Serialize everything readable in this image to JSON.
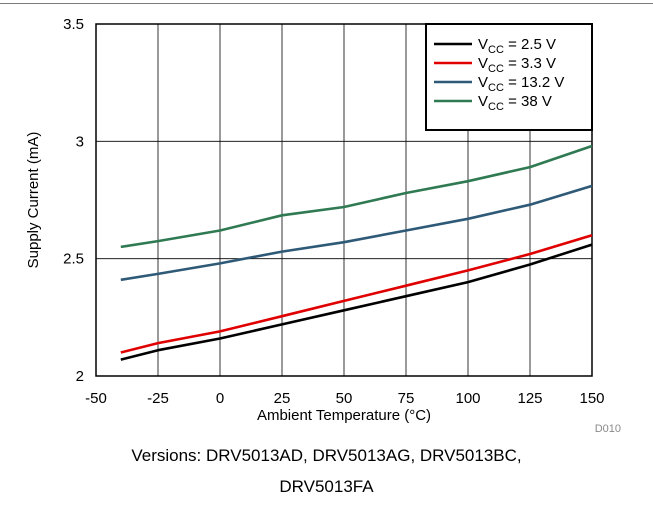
{
  "chart_data": {
    "type": "line",
    "title": "",
    "xlabel": "Ambient Temperature (°C)",
    "ylabel": "Supply Current (mA)",
    "xlim": [
      -50,
      150
    ],
    "ylim": [
      2,
      3.5
    ],
    "xticks": [
      "-50",
      "-25",
      "0",
      "25",
      "50",
      "75",
      "100",
      "125",
      "150"
    ],
    "yticks": [
      "2",
      "2.5",
      "3",
      "3.5"
    ],
    "grid": true,
    "legend_position": "top-right",
    "x": [
      -40,
      -25,
      0,
      25,
      50,
      75,
      100,
      125,
      150
    ],
    "series": [
      {
        "name_main": "V",
        "name_sub": "CC",
        "name_rest": " = 2.5 V",
        "color": "#000000",
        "values": [
          2.07,
          2.11,
          2.16,
          2.22,
          2.28,
          2.34,
          2.4,
          2.475,
          2.56
        ]
      },
      {
        "name_main": "V",
        "name_sub": "CC",
        "name_rest": " = 3.3 V",
        "color": "#e00000",
        "values": [
          2.1,
          2.14,
          2.19,
          2.255,
          2.32,
          2.385,
          2.45,
          2.52,
          2.6
        ]
      },
      {
        "name_main": "V",
        "name_sub": "CC",
        "name_rest": " = 13.2 V",
        "color": "#2e5a78",
        "values": [
          2.41,
          2.435,
          2.48,
          2.53,
          2.57,
          2.62,
          2.67,
          2.73,
          2.81
        ]
      },
      {
        "name_main": "V",
        "name_sub": "CC",
        "name_rest": " = 38 V",
        "color": "#2f7a52",
        "values": [
          2.55,
          2.575,
          2.62,
          2.685,
          2.72,
          2.78,
          2.83,
          2.89,
          2.98
        ]
      }
    ],
    "figure_id": "D010"
  },
  "caption": {
    "line1": "Versions: DRV5013AD, DRV5013AG, DRV5013BC,",
    "line2": "DRV5013FA"
  }
}
